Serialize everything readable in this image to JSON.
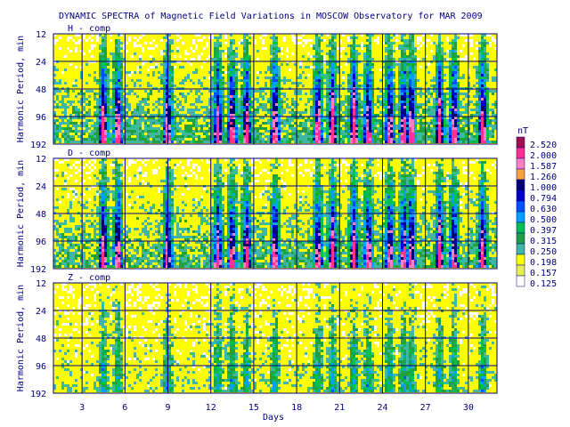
{
  "chart_data": {
    "type": "heatmap",
    "title": "DYNAMIC SPECTRA of Magnetic Field Variations in MOSCOW Observatory for MAR 2009",
    "xlabel": "Days",
    "ylabel": "Harmonic Period, min",
    "x_ticks": [
      "3",
      "6",
      "9",
      "12",
      "15",
      "18",
      "21",
      "24",
      "27",
      "30"
    ],
    "x_tick_values": [
      3,
      6,
      9,
      12,
      15,
      18,
      21,
      24,
      27,
      30
    ],
    "xlim": [
      1,
      32
    ],
    "y_ticks": [
      "12",
      "24",
      "48",
      "96",
      "192"
    ],
    "y_tick_values": [
      12,
      24,
      48,
      96,
      192
    ],
    "y_scale": "log",
    "ylim": [
      12,
      192
    ],
    "grid": true,
    "panels": [
      {
        "name": "H - comp",
        "activity": 1.0
      },
      {
        "name": "D - comp",
        "activity": 0.95
      },
      {
        "name": "Z - comp",
        "activity": 0.45
      }
    ],
    "colorbar": {
      "unit": "nT",
      "placement": "right",
      "levels": [
        "2.520",
        "2.000",
        "1.587",
        "1.260",
        "1.000",
        "0.794",
        "0.630",
        "0.500",
        "0.397",
        "0.315",
        "0.250",
        "0.198",
        "0.157",
        "0.125"
      ],
      "colors": [
        "#a0104a",
        "#ff3090",
        "#ff80c0",
        "#f8a040",
        "#000070",
        "#0000c8",
        "#0050ff",
        "#00a0ff",
        "#00c050",
        "#20a040",
        "#40b8a0",
        "#ffff00",
        "#e8f050",
        "#ffffff"
      ]
    },
    "active_days": [
      4.5,
      5.5,
      9,
      12.5,
      13.5,
      14.5,
      16.5,
      19.5,
      20.5,
      22,
      23,
      24.5,
      25.5,
      26,
      28,
      29,
      31
    ]
  }
}
